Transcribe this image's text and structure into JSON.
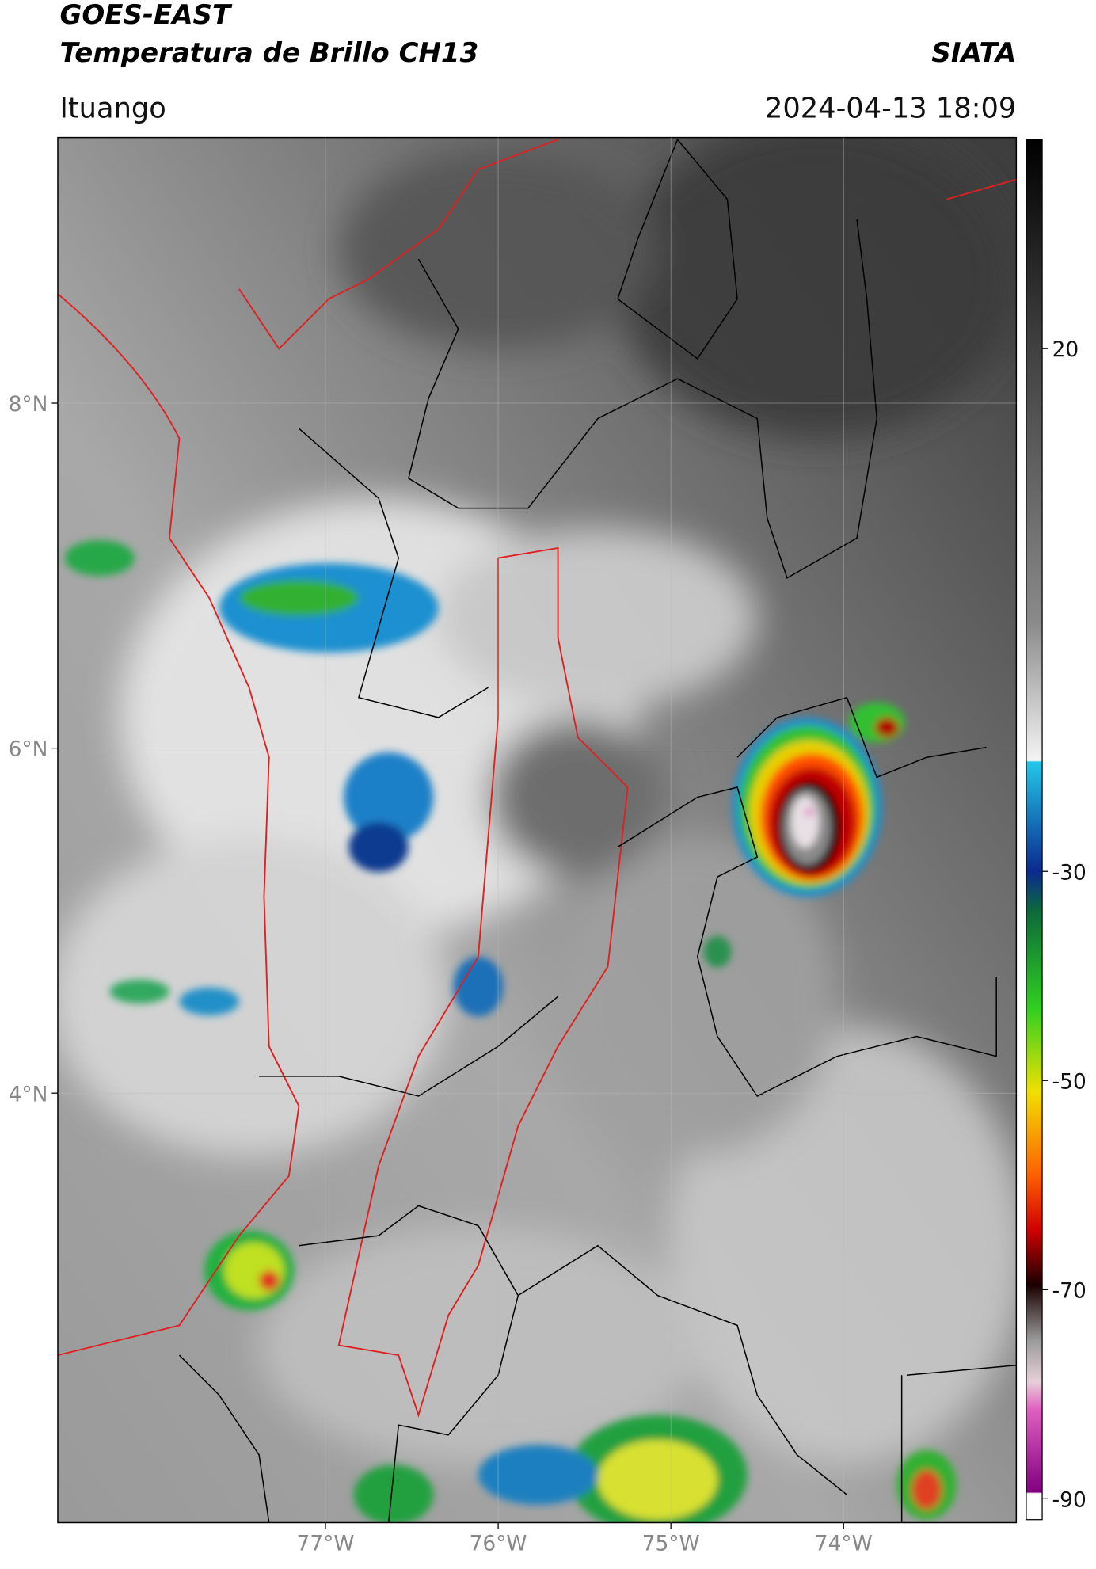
{
  "header": {
    "title": "GOES-EAST",
    "subtitle": "Temperatura de Brillo CH13",
    "agency": "SIATA",
    "location": "Ituango",
    "datetime": "2024-04-13 18:09"
  },
  "map": {
    "lonlim": [
      -78.55,
      -73.0
    ],
    "latlim": [
      1.51,
      9.54
    ],
    "lon_ticks": [
      {
        "value": -77,
        "label": "77°W"
      },
      {
        "value": -76,
        "label": "76°W"
      },
      {
        "value": -75,
        "label": "75°W"
      },
      {
        "value": -74,
        "label": "74°W"
      }
    ],
    "lat_ticks": [
      {
        "value": 8,
        "label": "8°N"
      },
      {
        "value": 6,
        "label": "6°N"
      },
      {
        "value": 4,
        "label": "4°N"
      }
    ]
  },
  "colorbar": {
    "clim": [
      -92,
      40
    ],
    "ticks": [
      20,
      -30,
      -50,
      -70,
      -90
    ]
  }
}
